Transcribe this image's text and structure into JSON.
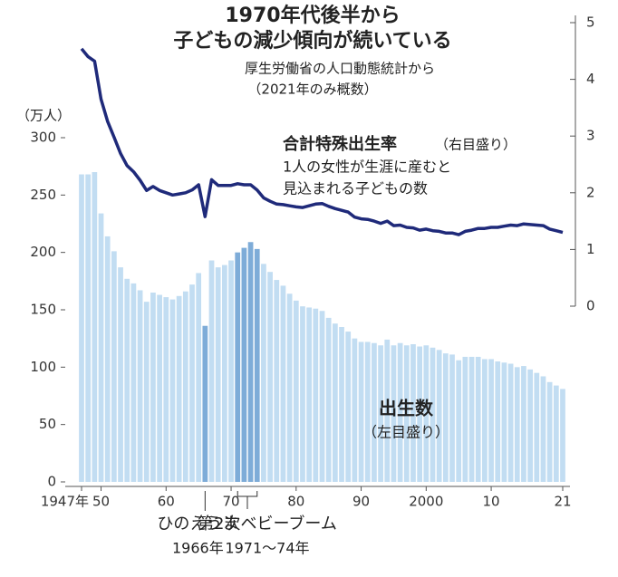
{
  "chart_data": {
    "type": "bar_line",
    "title": [
      "1970年代後半から",
      "子どもの減少傾向が続いている"
    ],
    "subtitle": [
      "厚生労働省の人口動態統計から",
      "（2021年のみ概数）"
    ],
    "y_unit": "（万人）",
    "x": [
      1947,
      1948,
      1949,
      1950,
      1951,
      1952,
      1953,
      1954,
      1955,
      1956,
      1957,
      1958,
      1959,
      1960,
      1961,
      1962,
      1963,
      1964,
      1965,
      1966,
      1967,
      1968,
      1969,
      1970,
      1971,
      1972,
      1973,
      1974,
      1975,
      1976,
      1977,
      1978,
      1979,
      1980,
      1981,
      1982,
      1983,
      1984,
      1985,
      1986,
      1987,
      1988,
      1989,
      1990,
      1991,
      1992,
      1993,
      1994,
      1995,
      1996,
      1997,
      1998,
      1999,
      2000,
      2001,
      2002,
      2003,
      2004,
      2005,
      2006,
      2007,
      2008,
      2009,
      2010,
      2011,
      2012,
      2013,
      2014,
      2015,
      2016,
      2017,
      2018,
      2019,
      2020,
      2021
    ],
    "xlim": [
      1947,
      2021
    ],
    "xticks": [
      {
        "value": 1947,
        "label": "1947年"
      },
      {
        "value": 1950,
        "label": "50"
      },
      {
        "value": 1960,
        "label": "60"
      },
      {
        "value": 1970,
        "label": "70"
      },
      {
        "value": 1980,
        "label": "80"
      },
      {
        "value": 1990,
        "label": "90"
      },
      2000,
      {
        "value": 2010,
        "label": "10"
      },
      {
        "value": 2021,
        "label": "21"
      }
    ],
    "ylim": [
      0,
      300
    ],
    "yticks": [
      0,
      50,
      100,
      150,
      200,
      250,
      300
    ],
    "y2lim": [
      0,
      5
    ],
    "y2ticks": [
      0,
      1,
      2,
      3,
      4,
      5
    ],
    "series": [
      {
        "name": "出生数",
        "note": "（左目盛り）",
        "type": "bar",
        "color": "#c2ddf2",
        "highlight_color": "#7eacd8",
        "values": [
          268,
          268,
          270,
          234,
          214,
          201,
          187,
          177,
          173,
          167,
          157,
          165,
          163,
          161,
          159,
          162,
          166,
          172,
          182,
          136,
          193,
          187,
          189,
          193,
          200,
          204,
          209,
          203,
          190,
          183,
          176,
          171,
          164,
          158,
          153,
          152,
          151,
          149,
          143,
          138,
          135,
          131,
          125,
          122,
          122,
          121,
          119,
          124,
          119,
          121,
          119,
          120,
          118,
          119,
          117,
          115,
          112,
          111,
          106,
          109,
          109,
          109,
          107,
          107,
          105,
          104,
          103,
          100,
          101,
          98,
          95,
          92,
          87,
          84,
          81
        ]
      },
      {
        "name": "合計特殊出生率",
        "note": "（右目盛り）",
        "type": "line",
        "axis": "y2",
        "color": "#1f2a7a",
        "description": [
          "1人の女性が生涯に産むと",
          "見込まれる子どもの数"
        ],
        "values": [
          4.54,
          4.4,
          4.32,
          3.65,
          3.26,
          2.98,
          2.69,
          2.48,
          2.37,
          2.22,
          2.04,
          2.11,
          2.04,
          2.0,
          1.96,
          1.98,
          2.0,
          2.05,
          2.14,
          1.58,
          2.23,
          2.13,
          2.13,
          2.13,
          2.16,
          2.14,
          2.14,
          2.05,
          1.91,
          1.85,
          1.8,
          1.79,
          1.77,
          1.75,
          1.74,
          1.77,
          1.8,
          1.81,
          1.76,
          1.72,
          1.69,
          1.66,
          1.57,
          1.54,
          1.53,
          1.5,
          1.46,
          1.5,
          1.42,
          1.43,
          1.39,
          1.38,
          1.34,
          1.36,
          1.33,
          1.32,
          1.29,
          1.29,
          1.26,
          1.32,
          1.34,
          1.37,
          1.37,
          1.39,
          1.39,
          1.41,
          1.43,
          1.42,
          1.45,
          1.44,
          1.43,
          1.42,
          1.36,
          1.33,
          1.3
        ]
      }
    ],
    "annotations": [
      {
        "text": "ひのえうま",
        "sub": "1966年",
        "from": 1966,
        "to": 1966
      },
      {
        "text": "第2次ベビーブーム",
        "sub": "1971～74年",
        "from": 1971,
        "to": 1974
      }
    ]
  }
}
